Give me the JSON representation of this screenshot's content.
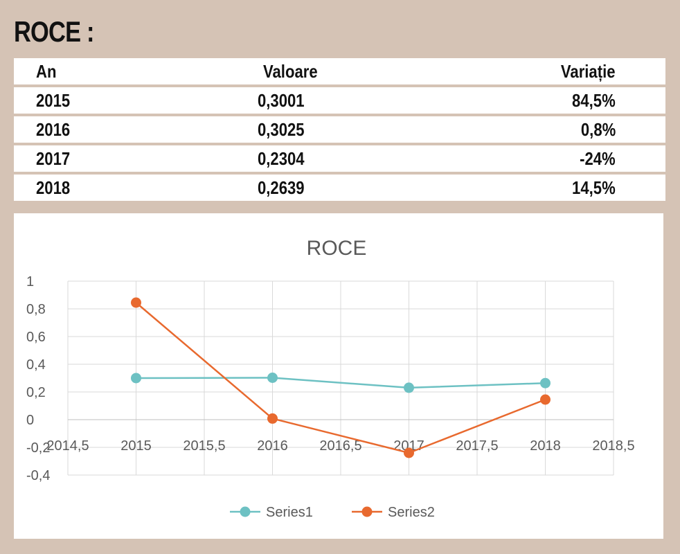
{
  "page": {
    "title": "ROCE :"
  },
  "table": {
    "headers": [
      "An",
      "Valoare",
      "Variație"
    ],
    "rows": [
      [
        "2015",
        "0,3001",
        "84,5%"
      ],
      [
        "2016",
        "0,3025",
        "0,8%"
      ],
      [
        "2017",
        "0,2304",
        "-24%"
      ],
      [
        "2018",
        "0,2639",
        "14,5%"
      ]
    ]
  },
  "chart_data": {
    "type": "line",
    "title": "ROCE",
    "xlabel": "",
    "ylabel": "",
    "xlim": [
      2014.5,
      2018.5
    ],
    "ylim": [
      -0.4,
      1
    ],
    "x_ticks": [
      "2014,5",
      "2015",
      "2015,5",
      "2016",
      "2016,5",
      "2017",
      "2017,5",
      "2018",
      "2018,5"
    ],
    "y_ticks": [
      "-0,4",
      "-0,2",
      "0",
      "0,2",
      "0,4",
      "0,6",
      "0,8",
      "1"
    ],
    "grid": true,
    "legend": "bottom",
    "series": [
      {
        "name": "Series1",
        "color": "#6dc1c3",
        "x": [
          2015,
          2016,
          2017,
          2018
        ],
        "y": [
          0.3001,
          0.3025,
          0.2304,
          0.2639
        ]
      },
      {
        "name": "Series2",
        "color": "#e8692e",
        "x": [
          2015,
          2016,
          2017,
          2018
        ],
        "y": [
          0.845,
          0.008,
          -0.24,
          0.145
        ]
      }
    ]
  }
}
